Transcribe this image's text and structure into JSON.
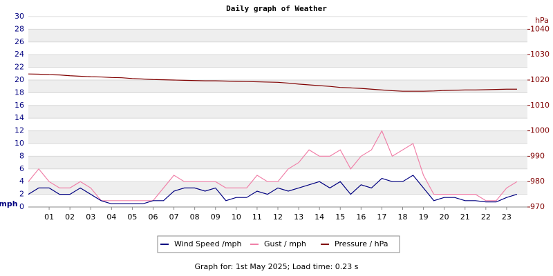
{
  "chart_data": {
    "type": "line",
    "title": "Daily graph of Weather",
    "y_label": "mph",
    "y2_label": "hPa",
    "x": [
      0,
      0.5,
      1,
      1.5,
      2,
      2.5,
      3,
      3.5,
      4,
      4.5,
      5,
      5.5,
      6,
      6.5,
      7,
      7.5,
      8,
      8.5,
      9,
      9.5,
      10,
      10.5,
      11,
      11.5,
      12,
      12.5,
      13,
      13.5,
      14,
      14.5,
      15,
      15.5,
      16,
      16.5,
      17,
      17.5,
      18,
      18.5,
      19,
      19.5,
      20,
      20.5,
      21,
      21.5,
      22,
      22.5,
      23,
      23.5
    ],
    "series": [
      {
        "name": "Wind Speed /mph",
        "color": "#000080",
        "values": [
          2,
          3,
          3,
          2,
          2,
          3,
          2,
          1,
          0.5,
          0.5,
          0.5,
          0.5,
          1,
          1,
          2.5,
          3,
          3,
          2.5,
          3,
          1,
          1.5,
          1.5,
          2.5,
          2,
          3,
          2.5,
          3,
          3.5,
          4,
          3,
          4,
          2,
          3.5,
          3,
          4.5,
          4,
          4,
          5,
          3,
          1,
          1.5,
          1.5,
          1,
          1,
          0.8,
          0.8,
          1.5,
          2
        ]
      },
      {
        "name": "Gust / mph",
        "color": "#f080a8",
        "values": [
          4,
          6,
          4,
          3,
          3,
          4,
          3,
          1,
          1,
          1,
          1,
          1,
          1,
          3,
          5,
          4,
          4,
          4,
          4,
          3,
          3,
          3,
          5,
          4,
          4,
          6,
          7,
          9,
          8,
          8,
          9,
          6,
          8,
          9,
          12,
          8,
          9,
          10,
          5,
          2,
          2,
          2,
          2,
          2,
          1,
          1,
          3,
          4
        ]
      },
      {
        "name": "Pressure / hPa",
        "color": "#800000",
        "axis": "y2",
        "values": [
          1022.4,
          1022.3,
          1022.1,
          1022.0,
          1021.7,
          1021.5,
          1021.3,
          1021.2,
          1021.0,
          1020.9,
          1020.6,
          1020.4,
          1020.2,
          1020.1,
          1020.0,
          1019.9,
          1019.8,
          1019.7,
          1019.7,
          1019.6,
          1019.5,
          1019.4,
          1019.3,
          1019.2,
          1019.1,
          1018.8,
          1018.4,
          1018.1,
          1017.8,
          1017.5,
          1017.1,
          1016.9,
          1016.7,
          1016.4,
          1016.1,
          1015.8,
          1015.6,
          1015.6,
          1015.6,
          1015.7,
          1015.9,
          1016.0,
          1016.1,
          1016.1,
          1016.2,
          1016.3,
          1016.4,
          1016.4
        ]
      }
    ],
    "xlim": [
      0,
      24
    ],
    "xticks": [
      {
        "value": 1,
        "label": "01"
      },
      {
        "value": 2,
        "label": "02"
      },
      {
        "value": 3,
        "label": "03"
      },
      {
        "value": 4,
        "label": "04"
      },
      {
        "value": 5,
        "label": "05"
      },
      {
        "value": 6,
        "label": "06"
      },
      {
        "value": 7,
        "label": "07"
      },
      {
        "value": 8,
        "label": "08"
      },
      {
        "value": 9,
        "label": "09"
      },
      {
        "value": 10,
        "label": "10"
      },
      {
        "value": 11,
        "label": "11"
      },
      {
        "value": 12,
        "label": "12"
      },
      {
        "value": 13,
        "label": "13"
      },
      {
        "value": 14,
        "label": "14"
      },
      {
        "value": 15,
        "label": "15"
      },
      {
        "value": 16,
        "label": "16"
      },
      {
        "value": 17,
        "label": "17"
      },
      {
        "value": 18,
        "label": "18"
      },
      {
        "value": 19,
        "label": "19"
      },
      {
        "value": 20,
        "label": "20"
      },
      {
        "value": 21,
        "label": "21"
      },
      {
        "value": 22,
        "label": "22"
      },
      {
        "value": 23,
        "label": "23"
      }
    ],
    "ylim": [
      0,
      30
    ],
    "yticks": [
      0,
      2,
      4,
      6,
      8,
      10,
      12,
      14,
      16,
      18,
      20,
      22,
      24,
      26,
      28,
      30
    ],
    "y2lim": [
      970,
      1045
    ],
    "y2ticks": [
      970,
      980,
      990,
      1000,
      1010,
      1020,
      1030,
      1040
    ],
    "grid": true,
    "legend": "bottom"
  },
  "footer": "Graph for: 1st May 2025; Load time: 0.23 s"
}
